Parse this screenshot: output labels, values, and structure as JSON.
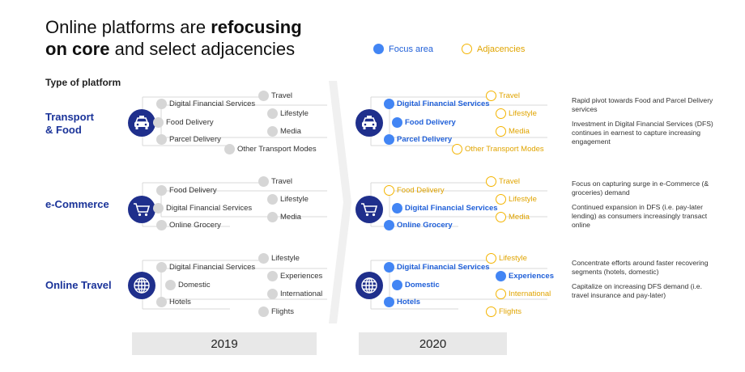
{
  "title": {
    "line1": "Online platforms are ",
    "bold1": "refocusing",
    "bold2": "on core",
    "line2": " and select adjacencies"
  },
  "legend": {
    "focus": "Focus area",
    "adjacencies": "Adjacencies"
  },
  "type_label": "Type of platform",
  "colors": {
    "focus": "#4285f4",
    "adjacency": "#f4b400",
    "icon_bg": "#1f2f8c",
    "neutral": "#d6d6d6"
  },
  "years": [
    "2019",
    "2020"
  ],
  "rows": [
    {
      "label1": "Transport",
      "label2": "& Food",
      "icon": "taxi-icon",
      "items2019": {
        "r1": "Digital Financial Services",
        "r2": "Food Delivery",
        "r3": "Parcel Delivery",
        "t1": "Travel",
        "t2": "Lifestyle",
        "t3": "Media",
        "t4": "Other Transport Modes"
      },
      "items2020": {
        "r1": "Digital Financial Services",
        "r2": "Food Delivery",
        "r3": "Parcel Delivery",
        "t1": "Travel",
        "t2": "Lifestyle",
        "t3": "Media",
        "t4": "Other Transport Modes"
      },
      "notes": [
        "Rapid pivot towards Food and Parcel Delivery services",
        "Investment in Digital Financial Services (DFS) continues in earnest to capture increasing engagement"
      ]
    },
    {
      "label1": "e-Commerce",
      "label2": "",
      "icon": "shopping-cart-icon",
      "items2019": {
        "r1": "Food Delivery",
        "r2": "Digital Financial Services",
        "r3": "Online Grocery",
        "t1": "Travel",
        "t2": "Lifestyle",
        "t3": "Media"
      },
      "items2020": {
        "r1": "Food Delivery",
        "r2": "Digital Financial Services",
        "r3": "Online Grocery",
        "t1": "Travel",
        "t2": "Lifestyle",
        "t3": "Media"
      },
      "notes": [
        "Focus on capturing surge in e-Commerce (& groceries) demand",
        "Continued expansion in DFS (i.e. pay-later lending) as consumers increasingly transact online"
      ]
    },
    {
      "label1": "Online Travel",
      "label2": "",
      "icon": "globe-icon",
      "items2019": {
        "r1": "Digital Financial Services",
        "r2": "Domestic",
        "r3": "Hotels",
        "t1": "Lifestyle",
        "t2": "Experiences",
        "t3": "International",
        "t4": "Flights"
      },
      "items2020": {
        "r1": "Digital Financial Services",
        "r2": "Domestic",
        "r3": "Hotels",
        "t1": "Lifestyle",
        "t2": "Experiences",
        "t3": "International",
        "t4": "Flights"
      },
      "notes": [
        "Concentrate efforts around faster recovering segments (hotels, domestic)",
        "Capitalize on increasing DFS demand (i.e. travel insurance and pay-later)"
      ]
    }
  ]
}
